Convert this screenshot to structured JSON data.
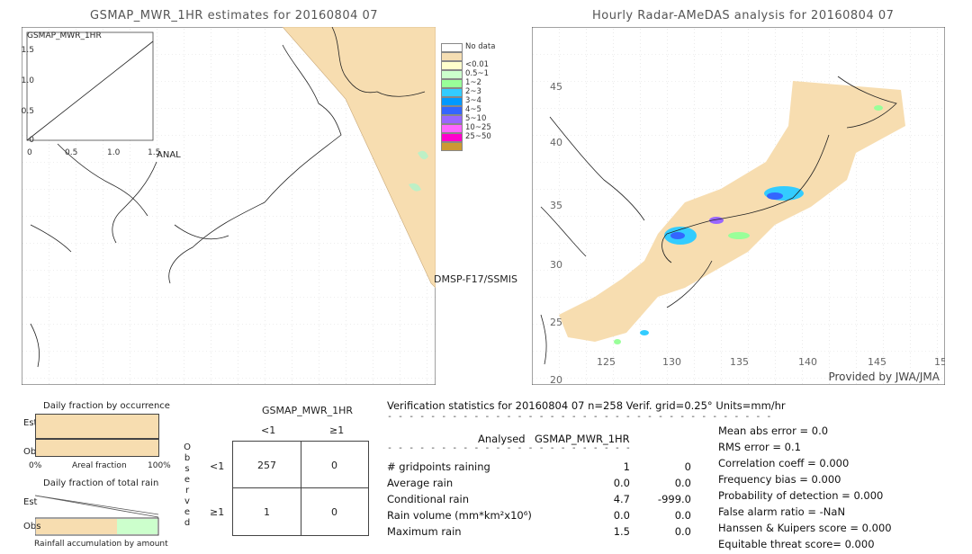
{
  "left_map": {
    "title": "GSMAP_MWR_1HR estimates for 20160804 07",
    "inset_label": "GSMAP_MWR_1HR",
    "inset_y_ticks": [
      "1.5",
      "1.0",
      "0.5",
      "0"
    ],
    "inset_x_ticks": [
      "0",
      "0.5",
      "1.0",
      "1.5"
    ],
    "inset_x_axis_label": "ANAL",
    "satellite_label": "DMSP-F17/SSMIS"
  },
  "right_map": {
    "title": "Hourly Radar-AMeDAS analysis for 20160804 07",
    "lat_ticks": [
      "45",
      "40",
      "35",
      "30",
      "25",
      "20"
    ],
    "lon_ticks": [
      "125",
      "130",
      "135",
      "140",
      "145",
      "15"
    ],
    "credit": "Provided by JWA/JMA"
  },
  "legend": {
    "items": [
      {
        "label": "No data",
        "color": "#ffffff"
      },
      {
        "label": "",
        "color": "#f5deb3"
      },
      {
        "label": "<0.01",
        "color": "#ffffcc"
      },
      {
        "label": "0.5~1",
        "color": "#ccffcc"
      },
      {
        "label": "1~2",
        "color": "#99ff99"
      },
      {
        "label": "2~3",
        "color": "#33ccff"
      },
      {
        "label": "3~4",
        "color": "#0099ff"
      },
      {
        "label": "4~5",
        "color": "#3366ff"
      },
      {
        "label": "5~10",
        "color": "#9966ff"
      },
      {
        "label": "10~25",
        "color": "#ff66ff"
      },
      {
        "label": "25~50",
        "color": "#ff00cc"
      },
      {
        "label": "",
        "color": "#cc9933"
      }
    ]
  },
  "fraction_occurrence": {
    "title": "Daily fraction by occurrence",
    "est_label": "Est",
    "obs_label": "Obs",
    "axis_left": "0%",
    "axis_mid": "Areal fraction",
    "axis_right": "100%",
    "est_fraction": 1.0,
    "obs_fraction": 1.0
  },
  "fraction_total": {
    "title": "Daily fraction of total rain",
    "est_label": "Est",
    "obs_label": "Obs",
    "footer": "Rainfall accumulation by amount"
  },
  "contingency": {
    "title": "GSMAP_MWR_1HR",
    "col_headers": [
      "<1",
      "≥1"
    ],
    "row_headers": [
      "<1",
      "≥1"
    ],
    "observed_label": [
      "O",
      "b",
      "s",
      "e",
      "r",
      "v",
      "e",
      "d"
    ],
    "cells": [
      [
        "257",
        "0"
      ],
      [
        "1",
        "0"
      ]
    ]
  },
  "verification": {
    "header": "Verification statistics for 20160804 07   n=258   Verif. grid=0.25°   Units=mm/hr",
    "col_analysed": "Analysed",
    "col_model": "GSMAP_MWR_1HR",
    "rows": [
      {
        "label": "# gridpoints raining",
        "a": "1",
        "b": "0"
      },
      {
        "label": "Average rain",
        "a": "0.0",
        "b": "0.0"
      },
      {
        "label": "Conditional rain",
        "a": "4.7",
        "b": "-999.0"
      },
      {
        "label": "Rain volume (mm*km²x10⁶)",
        "a": "0.0",
        "b": "0.0"
      },
      {
        "label": "Maximum rain",
        "a": "1.5",
        "b": "0.0"
      }
    ],
    "scores": [
      "Mean abs error = 0.0",
      "RMS error = 0.1",
      "Correlation coeff = 0.000",
      "Frequency bias = 0.000",
      "Probability of detection = 0.000",
      "False alarm ratio = -NaN",
      "Hanssen & Kuipers score = 0.000",
      "Equitable threat score= 0.000"
    ]
  },
  "chart_data": {
    "type": "table",
    "title": "Verification statistics for 20160804 07",
    "n": 258,
    "contingency": {
      "rows": [
        "<1",
        "≥1"
      ],
      "cols": [
        "<1",
        "≥1"
      ],
      "values": [
        [
          257,
          0
        ],
        [
          1,
          0
        ]
      ]
    },
    "stats": {
      "gridpoints_raining": [
        1,
        0
      ],
      "average_rain": [
        0.0,
        0.0
      ],
      "conditional_rain": [
        4.7,
        -999.0
      ],
      "rain_volume": [
        0.0,
        0.0
      ],
      "maximum_rain": [
        1.5,
        0.0
      ]
    }
  }
}
